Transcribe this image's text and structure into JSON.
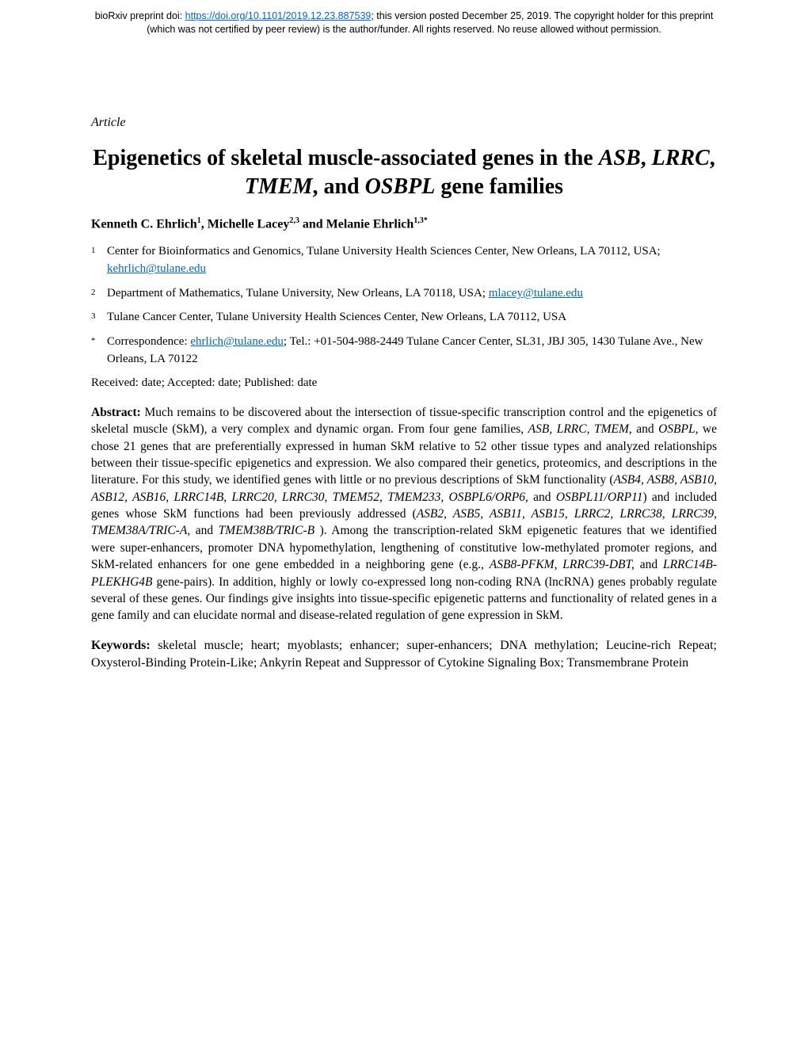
{
  "preprint": {
    "line1_prefix": "bioRxiv preprint doi: ",
    "doi_url": "https://doi.org/10.1101/2019.12.23.887539",
    "line1_suffix": "; this version posted December 25, 2019. The copyright holder for this preprint",
    "line2": "(which was not certified by peer review) is the author/funder. All rights reserved. No reuse allowed without permission."
  },
  "article_label": "Article",
  "title_part1": "Epigenetics of skeletal muscle-associated genes in the ",
  "title_ital1": "ASB",
  "title_sep1": ", ",
  "title_ital2": "LRRC",
  "title_sep2": ", ",
  "title_ital3": "TMEM",
  "title_sep3": ", and ",
  "title_ital4": "OSBPL",
  "title_part2": " gene families",
  "authors": {
    "a1": "Kenneth C. Ehrlich",
    "s1": "1",
    "sep1": ", ",
    "a2": "Michelle Lacey",
    "s2": "2,3",
    "sep2": " and ",
    "a3": "Melanie Ehrlich",
    "s3": "1,3*"
  },
  "aff": [
    {
      "num": "1",
      "text": "Center for Bioinformatics and Genomics, Tulane University Health Sciences Center, New Orleans, LA 70112, USA; ",
      "email": "kehrlich@tulane.edu"
    },
    {
      "num": "2",
      "text": "Department of Mathematics, Tulane University, New Orleans, LA 70118, USA; ",
      "email": "mlacey@tulane.edu"
    },
    {
      "num": "3",
      "text": "Tulane Cancer Center, Tulane University Health Sciences Center, New Orleans, LA 70112, USA",
      "email": ""
    },
    {
      "num": "*",
      "text": "Correspondence: ",
      "email": "ehrlich@tulane.edu",
      "suffix": "; Tel.: +01-504-988-2449 Tulane Cancer Center, SL31, JBJ 305, 1430 Tulane Ave., New Orleans, LA 70122"
    }
  ],
  "dates": "Received: date; Accepted: date; Published: date",
  "abstract": {
    "label": "Abstract: ",
    "p1": "Much remains to be discovered about the intersection of tissue-specific transcription control and the epigenetics of skeletal muscle (SkM), a very complex and dynamic organ. From four gene families, ",
    "i1": "ASB, LRRC, TMEM",
    "p2": ", and ",
    "i2": "OSBPL",
    "p3": ", we chose 21 genes that are preferentially expressed in human SkM relative to 52 other tissue types and analyzed relationships between their tissue-specific epigenetics and expression. We also compared their genetics, proteomics, and descriptions in the literature. For this study, we identified genes with little or no previous descriptions of SkM functionality (",
    "i3": "ASB4, ASB8, ASB10, ASB12, ASB16, LRRC14B, LRRC20, LRRC30, TMEM52, TMEM233, OSBPL6/ORP6,",
    "p4": " and ",
    "i4": "OSBPL11/ORP11",
    "p5": ") and included genes whose SkM functions had been previously addressed (",
    "i5": "ASB2, ASB5, ASB11, ASB15, LRRC2, LRRC38, LRRC39, TMEM38A/TRIC-A,",
    "p6": " and ",
    "i6": "TMEM38B/TRIC-B",
    "p7": " ). Among the transcription-related SkM epigenetic features that we identified were super-enhancers, promoter DNA hypomethylation, lengthening of constitutive low-methylated promoter regions, and SkM-related enhancers for one gene embedded in a neighboring gene (e.g., ",
    "i7": "ASB8-PFKM, LRRC39-DBT,",
    "p8": " and ",
    "i8": "LRRC14B-PLEKHG4B",
    "p9": " gene-pairs). In addition, highly or lowly co-expressed long non-coding RNA (lncRNA) genes probably regulate several of these genes. Our findings give insights into tissue-specific epigenetic patterns and functionality of related genes in a gene family and can elucidate normal and disease-related regulation of gene expression in SkM."
  },
  "keywords": {
    "label": "Keywords: ",
    "text": "skeletal muscle; heart; myoblasts; enhancer; super-enhancers; DNA methylation; Leucine-rich Repeat; Oxysterol-Binding Protein-Like; Ankyrin Repeat and Suppressor of Cytokine Signaling Box; Transmembrane Protein"
  }
}
